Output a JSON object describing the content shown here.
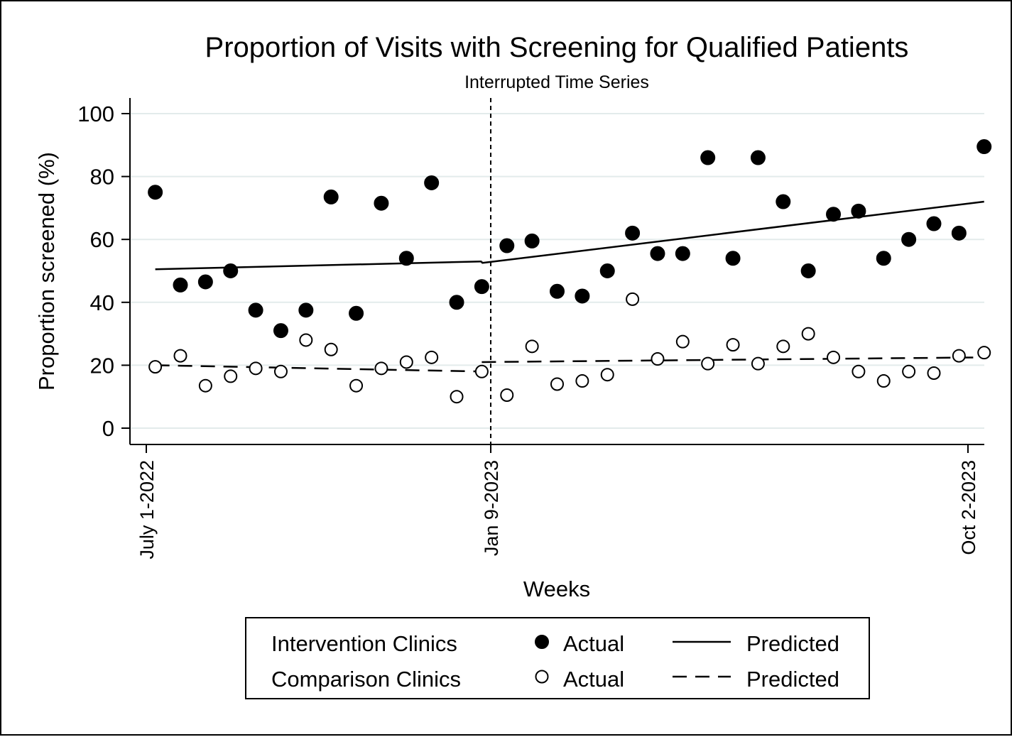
{
  "chart_data": {
    "type": "scatter",
    "title": "Proportion of Visits with Screening for Qualified Patients",
    "subtitle": "Interrupted Time Series",
    "xlabel": "Weeks",
    "ylabel": "Proportion screened (%)",
    "ylim": [
      0,
      100
    ],
    "yticks": [
      0,
      20,
      40,
      60,
      80,
      100
    ],
    "xtick_labels": [
      "July 1-2022",
      "Jan 9-2023",
      "Oct 2-2023"
    ],
    "grid": true,
    "interruption_label": "Jan 9-2023",
    "legend": {
      "placement": "bottom",
      "rows": [
        {
          "group": "Intervention Clinics",
          "actual": "Actual",
          "predicted": "Predicted"
        },
        {
          "group": "Comparison Clinics",
          "actual": "Actual",
          "predicted": "Predicted"
        }
      ]
    },
    "series": [
      {
        "name": "Intervention Clinics Actual",
        "marker": "filled-circle",
        "x": [
          "2022-07-06",
          "2022-07-20",
          "2022-08-03",
          "2022-08-17",
          "2022-08-31",
          "2022-09-14",
          "2022-09-28",
          "2022-10-12",
          "2022-10-26",
          "2022-11-09",
          "2022-11-23",
          "2022-12-07",
          "2022-12-21",
          "2023-01-04",
          "2023-01-18",
          "2023-02-01",
          "2023-02-15",
          "2023-03-01",
          "2023-03-15",
          "2023-03-29",
          "2023-04-12",
          "2023-04-26",
          "2023-05-10",
          "2023-05-24",
          "2023-06-07",
          "2023-06-21",
          "2023-07-05",
          "2023-07-19",
          "2023-08-02",
          "2023-08-16",
          "2023-08-30",
          "2023-09-13",
          "2023-09-27",
          "2023-10-11"
        ],
        "values": [
          75,
          45.5,
          46.5,
          50,
          37.5,
          31,
          37.5,
          73.5,
          36.5,
          71.5,
          54,
          78,
          40,
          45,
          58,
          59.5,
          43.5,
          42,
          50,
          62,
          55.5,
          55.5,
          86,
          54,
          86,
          72,
          50,
          68,
          69,
          54,
          60,
          65,
          62,
          89.5
        ]
      },
      {
        "name": "Comparison Clinics Actual",
        "marker": "hollow-circle",
        "x": [
          "2022-07-06",
          "2022-07-20",
          "2022-08-03",
          "2022-08-17",
          "2022-08-31",
          "2022-09-14",
          "2022-09-28",
          "2022-10-12",
          "2022-10-26",
          "2022-11-09",
          "2022-11-23",
          "2022-12-07",
          "2022-12-21",
          "2023-01-04",
          "2023-01-18",
          "2023-02-01",
          "2023-02-15",
          "2023-03-01",
          "2023-03-15",
          "2023-03-29",
          "2023-04-12",
          "2023-04-26",
          "2023-05-10",
          "2023-05-24",
          "2023-06-07",
          "2023-06-21",
          "2023-07-05",
          "2023-07-19",
          "2023-08-02",
          "2023-08-16",
          "2023-08-30",
          "2023-09-13",
          "2023-09-27",
          "2023-10-11"
        ],
        "values": [
          19.5,
          23,
          13.5,
          16.5,
          19,
          18,
          28,
          25,
          13.5,
          19,
          21,
          22.5,
          10,
          18,
          10.5,
          26,
          14,
          15,
          17,
          41,
          22,
          27.5,
          20.5,
          26.5,
          20.5,
          26,
          30,
          22.5,
          18,
          15,
          18,
          17.5,
          23,
          24
        ]
      },
      {
        "name": "Intervention Clinics Predicted",
        "line": "solid",
        "x": [
          "2022-07-06",
          "2023-01-04",
          "2023-01-04",
          "2023-10-11"
        ],
        "values": [
          50.5,
          53,
          52.5,
          72
        ]
      },
      {
        "name": "Comparison Clinics Predicted",
        "line": "dashed",
        "x": [
          "2022-07-06",
          "2023-01-04",
          "2023-01-04",
          "2023-10-11"
        ],
        "values": [
          20,
          18,
          21,
          22.5
        ]
      }
    ]
  }
}
